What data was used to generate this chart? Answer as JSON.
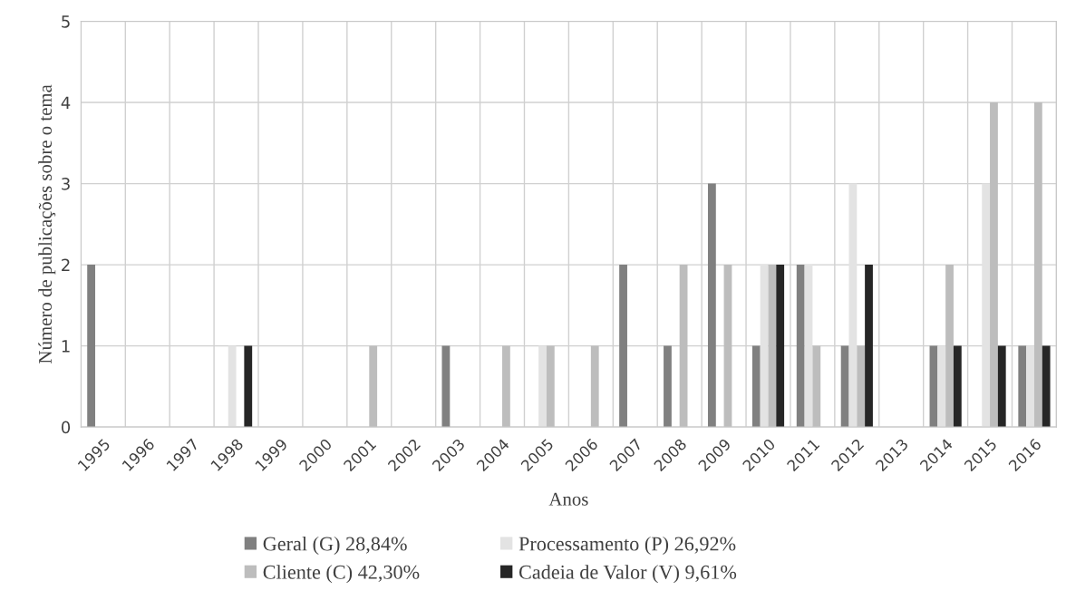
{
  "chart_data": {
    "type": "bar",
    "xlabel": "Anos",
    "ylabel": "Número de publicações sobre o tema",
    "categories": [
      "1995",
      "1996",
      "1997",
      "1998",
      "1999",
      "2000",
      "2001",
      "2002",
      "2003",
      "2004",
      "2005",
      "2006",
      "2007",
      "2008",
      "2009",
      "2010",
      "2011",
      "2012",
      "2013",
      "2014",
      "2015",
      "2016"
    ],
    "series": [
      {
        "name": "Geral (G) 28,84%",
        "color": "#808080",
        "values": [
          2,
          0,
          0,
          0,
          0,
          0,
          0,
          0,
          1,
          0,
          0,
          0,
          2,
          1,
          3,
          1,
          2,
          1,
          0,
          1,
          0,
          1
        ]
      },
      {
        "name": "Processamento (P) 26,92%",
        "color": "#e3e3e3",
        "values": [
          0,
          0,
          0,
          1,
          0,
          0,
          0,
          0,
          0,
          0,
          1,
          0,
          0,
          0,
          0,
          2,
          2,
          3,
          0,
          1,
          3,
          1
        ]
      },
      {
        "name": "Cliente (C) 42,30%",
        "color": "#bdbdbd",
        "values": [
          0,
          0,
          0,
          0,
          0,
          0,
          1,
          0,
          0,
          1,
          1,
          1,
          0,
          2,
          2,
          2,
          1,
          1,
          0,
          2,
          4,
          4
        ]
      },
      {
        "name": "Cadeia de Valor (V) 9,61%",
        "color": "#262626",
        "values": [
          0,
          0,
          0,
          1,
          0,
          0,
          0,
          0,
          0,
          0,
          0,
          0,
          0,
          0,
          0,
          2,
          0,
          2,
          0,
          1,
          1,
          1
        ]
      }
    ],
    "ylim": [
      0,
      5
    ],
    "yticks": [
      0,
      1,
      2,
      3,
      4,
      5
    ],
    "grid": true,
    "legend": "bottom"
  }
}
